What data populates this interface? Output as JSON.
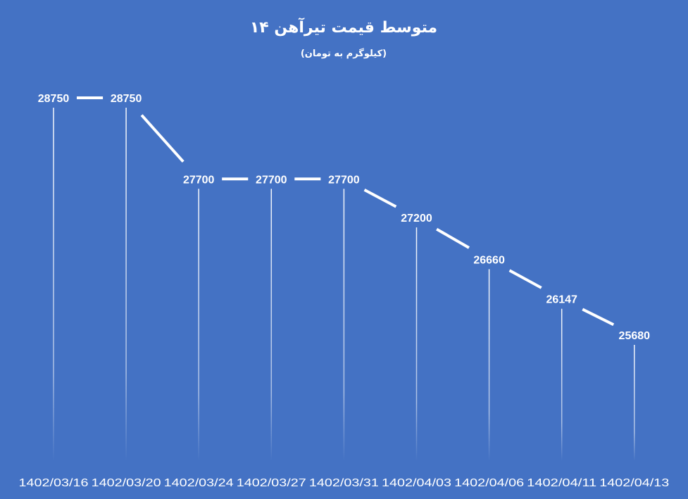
{
  "chart_data": {
    "type": "line",
    "title": "متوسط قیمت تیرآهن ۱۴",
    "subtitle": "(کیلوگرم به تومان)",
    "categories": [
      "1402/03/16",
      "1402/03/20",
      "1402/03/24",
      "1402/03/27",
      "1402/03/31",
      "1402/04/03",
      "1402/04/06",
      "1402/04/11",
      "1402/04/13"
    ],
    "series": [
      {
        "values": [
          28750,
          28750,
          27700,
          27700,
          27700,
          27200,
          26660,
          26147,
          25680
        ]
      }
    ],
    "data_labels": [
      "28750",
      "28750",
      "27700",
      "27700",
      "27700",
      "27200",
      "26660",
      "26147",
      "25680"
    ],
    "xlabel": "",
    "ylabel": "",
    "grid": false,
    "drop_lines": true,
    "colors": {
      "background": "#4472c4",
      "line": "#ffffff",
      "text": "#ffffff"
    }
  }
}
